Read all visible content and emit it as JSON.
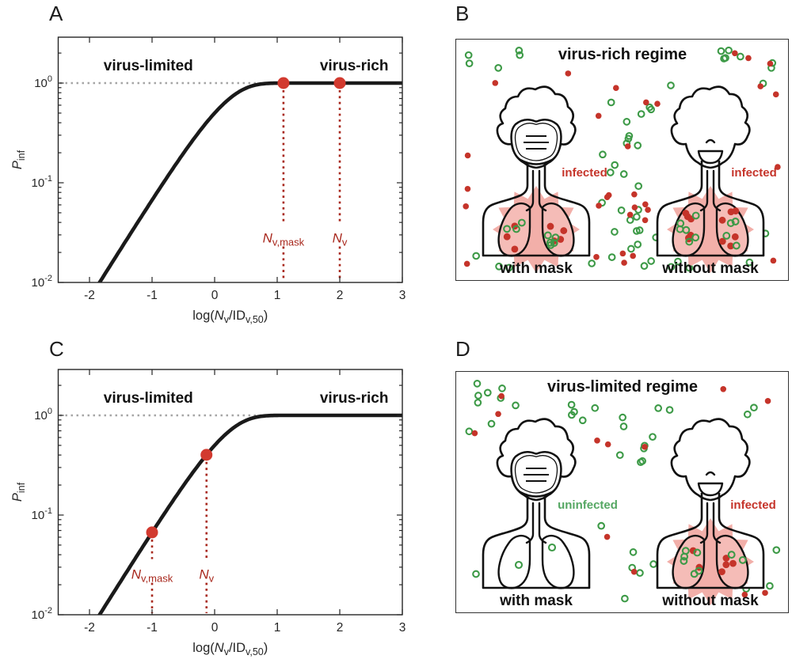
{
  "figure": {
    "panels": [
      {
        "label": "A",
        "kind": "chart"
      },
      {
        "label": "B",
        "kind": "illustration"
      },
      {
        "label": "C",
        "kind": "chart"
      },
      {
        "label": "D",
        "kind": "illustration"
      }
    ]
  },
  "colors": {
    "curve": "#1a1a1a",
    "axis": "#262626",
    "tick_text": "#262626",
    "grid_dotted": "#a6a6a6",
    "red": "#c5342a",
    "red_marker": "#d23a2f",
    "red_dark": "#a8281d",
    "green": "#3d9a47",
    "green_text": "#55a763",
    "lung_pink": "#f5bcb7",
    "star_pink": "#f2afa9",
    "outline": "#111111"
  },
  "chart_data": [
    {
      "panel": "A",
      "type": "line",
      "xlabel": "log(Nv/IDv,50)",
      "xlabel_rich": [
        {
          "t": "log("
        },
        {
          "t": "N",
          "i": true
        },
        {
          "t": "v",
          "sub": true
        },
        {
          "t": "/ID"
        },
        {
          "t": "v,50",
          "sub": true
        },
        {
          "t": ")"
        }
      ],
      "ylabel": "Pinf",
      "ylabel_rich": [
        {
          "t": "P",
          "i": true
        },
        {
          "t": "inf",
          "sub": true
        }
      ],
      "xlim": [
        -2.5,
        3
      ],
      "ylim": [
        0.01,
        2.9
      ],
      "yscale": "log",
      "xticks": [
        -2,
        -1,
        0,
        1,
        2,
        3
      ],
      "yticks": [
        {
          "base": "10",
          "exp": "0"
        },
        {
          "base": "10",
          "exp": "-1"
        },
        {
          "base": "10",
          "exp": "-2"
        }
      ],
      "grid": false,
      "reference_line": {
        "y": 1.0,
        "style": "dotted"
      },
      "region_labels": [
        {
          "text": "virus-limited",
          "x": -1.06
        },
        {
          "text": "virus-rich",
          "x": 2.23
        }
      ],
      "curve": {
        "formula": "P_inf = 1 - exp(-ln(2) * N_v / ID_v,50)",
        "x": [
          -2,
          -1.5,
          -1,
          -0.5,
          0,
          0.5,
          1,
          1.5,
          2,
          2.5,
          3
        ],
        "P_inf": [
          0.0069,
          0.0217,
          0.067,
          0.197,
          0.5,
          0.888,
          0.999,
          1.0,
          1.0,
          1.0,
          1.0
        ]
      },
      "markers": [
        {
          "label": "Nv,mask",
          "label_rich": [
            {
              "t": "N",
              "i": true
            },
            {
              "t": "v,mask",
              "sub": true
            }
          ],
          "x": 1.1,
          "P_inf": 1.0
        },
        {
          "label": "Nv",
          "label_rich": [
            {
              "t": "N",
              "i": true
            },
            {
              "t": "v",
              "sub": true
            }
          ],
          "x": 2.0,
          "P_inf": 1.0
        }
      ],
      "marker_label_log_y": -1.56
    },
    {
      "panel": "C",
      "type": "line",
      "xlabel": "log(Nv/IDv,50)",
      "xlabel_rich": [
        {
          "t": "log("
        },
        {
          "t": "N",
          "i": true
        },
        {
          "t": "v",
          "sub": true
        },
        {
          "t": "/ID"
        },
        {
          "t": "v,50",
          "sub": true
        },
        {
          "t": ")"
        }
      ],
      "ylabel": "Pinf",
      "ylabel_rich": [
        {
          "t": "P",
          "i": true
        },
        {
          "t": "inf",
          "sub": true
        }
      ],
      "xlim": [
        -2.5,
        3
      ],
      "ylim": [
        0.01,
        2.9
      ],
      "yscale": "log",
      "xticks": [
        -2,
        -1,
        0,
        1,
        2,
        3
      ],
      "yticks": [
        {
          "base": "10",
          "exp": "0"
        },
        {
          "base": "10",
          "exp": "-1"
        },
        {
          "base": "10",
          "exp": "-2"
        }
      ],
      "grid": false,
      "reference_line": {
        "y": 1.0,
        "style": "dotted"
      },
      "region_labels": [
        {
          "text": "virus-limited",
          "x": -1.06
        },
        {
          "text": "virus-rich",
          "x": 2.23
        }
      ],
      "curve": {
        "formula": "P_inf = 1 - exp(-ln(2) * N_v / ID_v,50)",
        "x": [
          -2,
          -1.5,
          -1,
          -0.5,
          0,
          0.5,
          1,
          1.5,
          2,
          2.5,
          3
        ],
        "P_inf": [
          0.0069,
          0.0217,
          0.067,
          0.197,
          0.5,
          0.888,
          0.999,
          1.0,
          1.0,
          1.0,
          1.0
        ]
      },
      "markers": [
        {
          "label": "Nv,mask",
          "label_rich": [
            {
              "t": "N",
              "i": true
            },
            {
              "t": "v,mask",
              "sub": true
            }
          ],
          "x": -1.0,
          "P_inf": 0.067
        },
        {
          "label": "Nv",
          "label_rich": [
            {
              "t": "N",
              "i": true
            },
            {
              "t": "v",
              "sub": true
            }
          ],
          "x": -0.13,
          "P_inf": 0.402
        }
      ],
      "marker_label_log_y": -1.6
    }
  ],
  "illustrations": [
    {
      "panel": "B",
      "title": "virus-rich regime",
      "persons": [
        {
          "caption": "with mask",
          "mask": true,
          "infected": true,
          "status": "infected",
          "status_color_key": "red",
          "lung_dots": {
            "red": 7,
            "green": 8
          }
        },
        {
          "caption": "without mask",
          "mask": false,
          "infected": true,
          "status": "infected",
          "status_color_key": "red",
          "lung_dots": {
            "red": 12,
            "green": 10
          }
        }
      ],
      "ambient_dots": {
        "green": 55,
        "red": 33
      }
    },
    {
      "panel": "D",
      "title": "virus-limited regime",
      "persons": [
        {
          "caption": "with mask",
          "mask": true,
          "infected": false,
          "status": "uninfected",
          "status_color_key": "green_text",
          "lung_dots": {
            "red": 0,
            "green": 2
          }
        },
        {
          "caption": "without mask",
          "mask": false,
          "infected": true,
          "status": "infected",
          "status_color_key": "red",
          "lung_dots": {
            "red": 6,
            "green": 8
          }
        }
      ],
      "ambient_dots": {
        "green": 37,
        "red": 12
      }
    }
  ]
}
